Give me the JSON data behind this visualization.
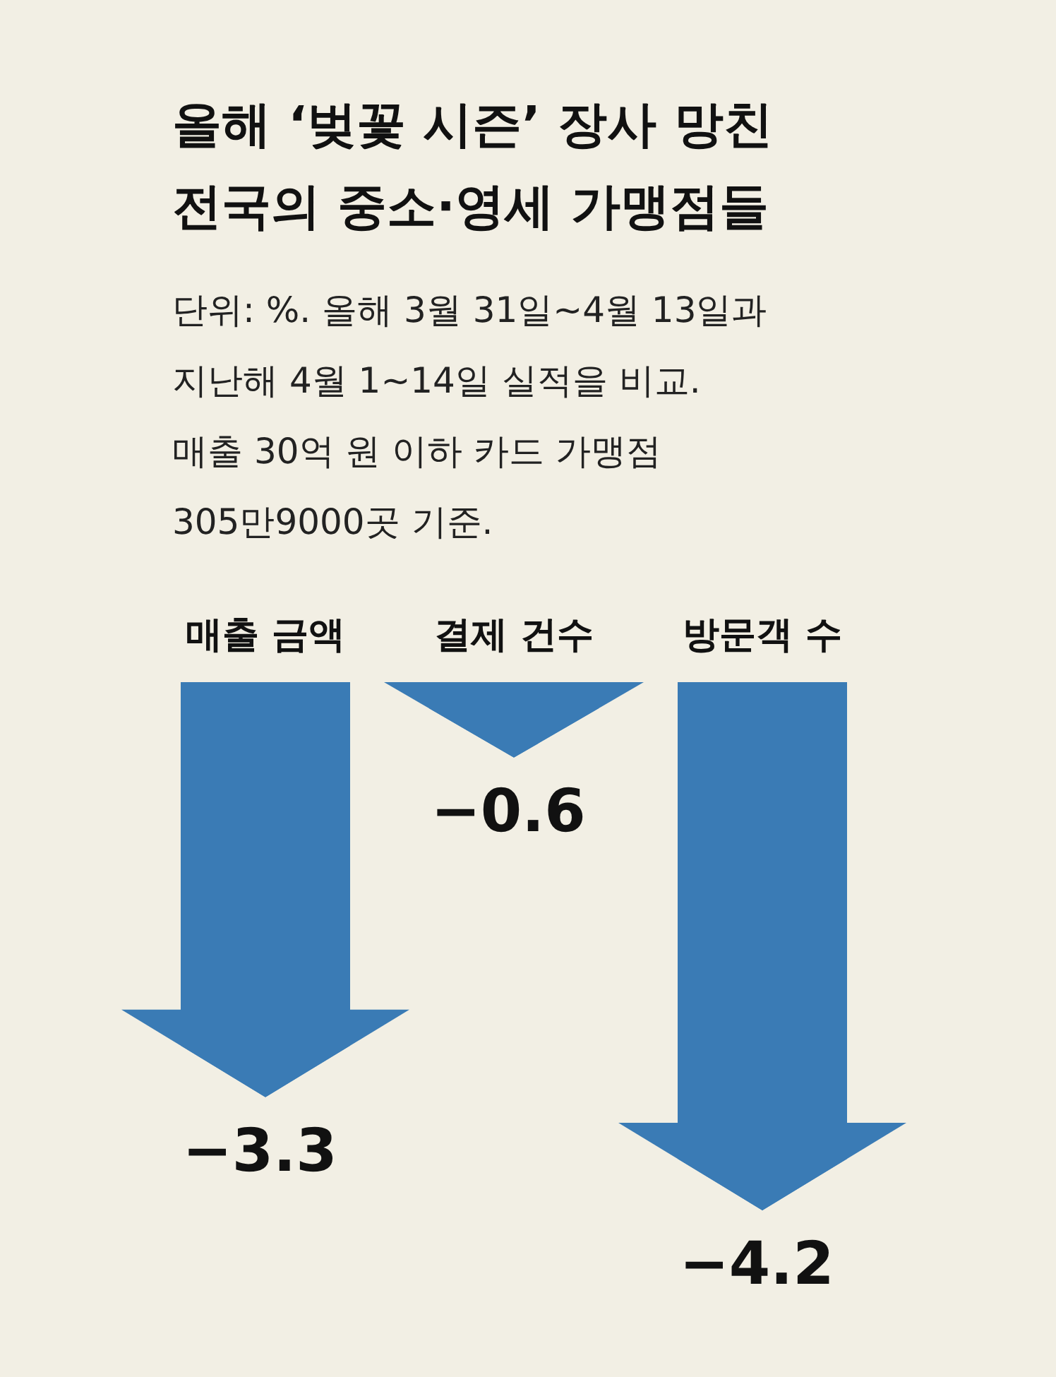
{
  "chart_data": {
    "type": "bar",
    "title": "올해 ‘벚꽃 시즌’ 장사 망친\n전국의 중소·영세 가맹점들",
    "subtitle": "단위: %. 올해 3월 31일~4월 13일과\n지난해 4월 1~14일 실적을 비교.\n매출 30억 원 이하 카드 가맹점\n305만9000곳 기준.",
    "categories": [
      "매출 금액",
      "결제 건수",
      "방문객 수"
    ],
    "values": [
      -3.3,
      -0.6,
      -4.2
    ],
    "value_labels": [
      "−3.3",
      "−0.6",
      "−4.2"
    ],
    "color": "#3a7bb5"
  }
}
